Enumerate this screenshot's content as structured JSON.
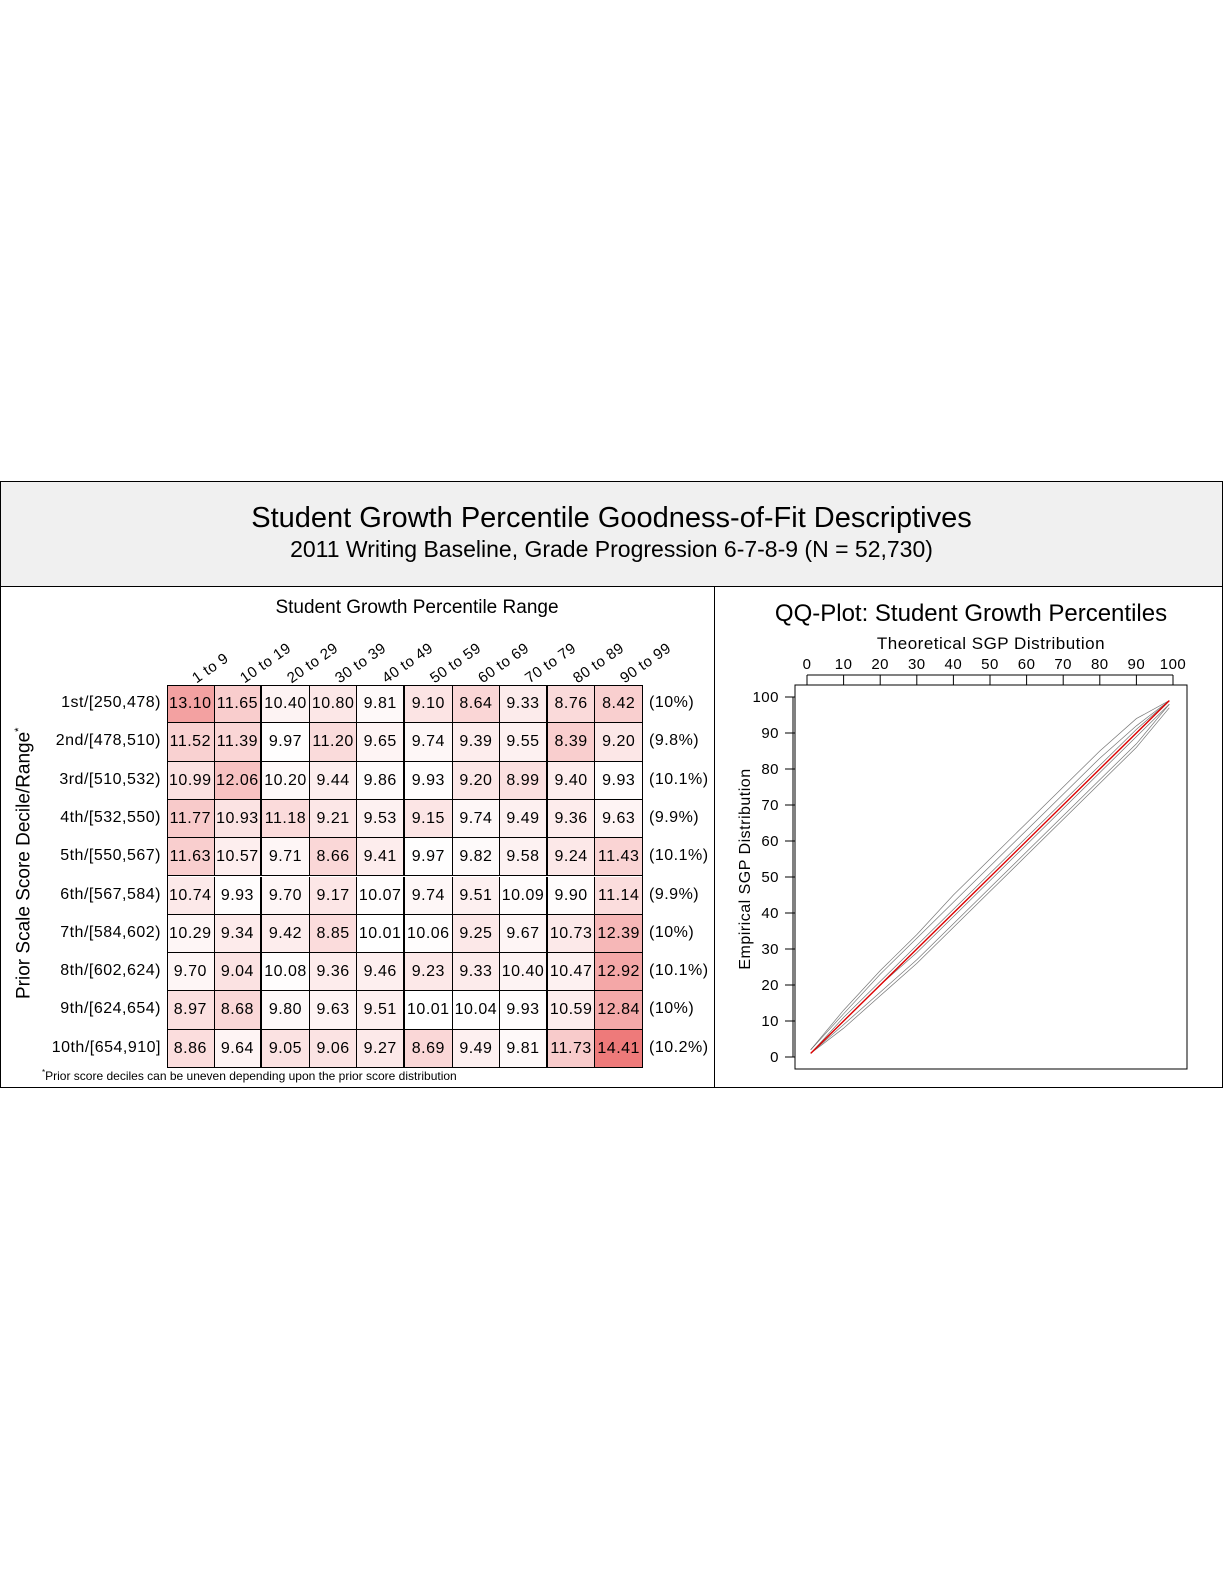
{
  "header": {
    "title": "Student Growth Percentile Goodness-of-Fit Descriptives",
    "subtitle": "2011 Writing Baseline, Grade Progression 6-7-8-9 (N = 52,730)"
  },
  "chart_data": [
    {
      "type": "heatmap",
      "title": "Student Growth Percentile Range",
      "ylabel": "Prior Scale Score Decile/Range",
      "ylabel_mark": "*",
      "columns": [
        "1 to 9",
        "10 to 19",
        "20 to 29",
        "30 to 39",
        "40 to 49",
        "50 to 59",
        "60 to 69",
        "70 to 79",
        "80 to 89",
        "90 to 99"
      ],
      "rows": [
        "1st/[250,478)",
        "2nd/[478,510)",
        "3rd/[510,532)",
        "4th/[532,550)",
        "5th/[550,567)",
        "6th/[567,584)",
        "7th/[584,602)",
        "8th/[602,624)",
        "9th/[624,654)",
        "10th/[654,910]"
      ],
      "values": [
        [
          "13.10",
          "11.65",
          "10.40",
          "10.80",
          "9.81",
          "9.10",
          "8.64",
          "9.33",
          "8.76",
          "8.42"
        ],
        [
          "11.52",
          "11.39",
          "9.97",
          "11.20",
          "9.65",
          "9.74",
          "9.39",
          "9.55",
          "8.39",
          "9.20"
        ],
        [
          "10.99",
          "12.06",
          "10.20",
          "9.44",
          "9.86",
          "9.93",
          "9.20",
          "8.99",
          "9.40",
          "9.93"
        ],
        [
          "11.77",
          "10.93",
          "11.18",
          "9.21",
          "9.53",
          "9.15",
          "9.74",
          "9.49",
          "9.36",
          "9.63"
        ],
        [
          "11.63",
          "10.57",
          "9.71",
          "8.66",
          "9.41",
          "9.97",
          "9.82",
          "9.58",
          "9.24",
          "11.43"
        ],
        [
          "10.74",
          "9.93",
          "9.70",
          "9.17",
          "10.07",
          "9.74",
          "9.51",
          "10.09",
          "9.90",
          "11.14"
        ],
        [
          "10.29",
          "9.34",
          "9.42",
          "8.85",
          "10.01",
          "10.06",
          "9.25",
          "9.67",
          "10.73",
          "12.39"
        ],
        [
          "9.70",
          "9.04",
          "10.08",
          "9.36",
          "9.46",
          "9.23",
          "9.33",
          "10.40",
          "10.47",
          "12.92"
        ],
        [
          "8.97",
          "8.68",
          "9.80",
          "9.63",
          "9.51",
          "10.01",
          "10.04",
          "9.93",
          "10.59",
          "12.84"
        ],
        [
          "8.86",
          "9.64",
          "9.05",
          "9.06",
          "9.27",
          "8.69",
          "9.49",
          "9.81",
          "11.73",
          "14.41"
        ]
      ],
      "row_percentages": [
        "(10%)",
        "(9.8%)",
        "(10.1%)",
        "(9.9%)",
        "(10.1%)",
        "(9.9%)",
        "(10%)",
        "(10.1%)",
        "(10%)",
        "(10.2%)"
      ],
      "color_scale": {
        "low": "#ffffff",
        "high": "#ee7777",
        "center": 10
      },
      "footnote_mark": "*",
      "footnote": "Prior score deciles can be uneven depending upon the prior score distribution"
    },
    {
      "type": "line",
      "title": "QQ-Plot: Student Growth Percentiles",
      "xlabel": "Theoretical SGP Distribution",
      "ylabel": "Empirical SGP Distribution",
      "xlim": [
        0,
        100
      ],
      "ylim": [
        0,
        100
      ],
      "xticks": [
        0,
        10,
        20,
        30,
        40,
        50,
        60,
        70,
        80,
        90,
        100
      ],
      "yticks": [
        0,
        10,
        20,
        30,
        40,
        50,
        60,
        70,
        80,
        90,
        100
      ],
      "series": [
        {
          "color": "#dd0000",
          "x": [
            1,
            99
          ],
          "y": [
            1,
            99
          ]
        },
        {
          "color": "#555555",
          "x": [
            1,
            10,
            20,
            30,
            40,
            50,
            60,
            70,
            80,
            90,
            99
          ],
          "y": [
            2,
            12,
            23,
            33,
            43,
            53,
            63,
            73,
            83,
            92,
            99
          ]
        },
        {
          "color": "#555555",
          "x": [
            1,
            10,
            20,
            30,
            40,
            50,
            60,
            70,
            80,
            90,
            99
          ],
          "y": [
            1,
            9,
            18,
            27,
            37,
            47,
            57,
            67,
            77,
            87,
            98
          ]
        },
        {
          "color": "#555555",
          "x": [
            1,
            10,
            20,
            30,
            40,
            50,
            60,
            70,
            80,
            90,
            99
          ],
          "y": [
            1,
            11,
            21,
            31,
            41,
            51,
            61,
            71,
            81,
            91,
            99
          ]
        },
        {
          "color": "#555555",
          "x": [
            1,
            10,
            20,
            30,
            40,
            50,
            60,
            70,
            80,
            90,
            99
          ],
          "y": [
            1,
            10,
            20,
            29,
            39,
            49,
            59,
            69,
            79,
            89,
            98
          ]
        },
        {
          "color": "#555555",
          "x": [
            1,
            10,
            20,
            30,
            40,
            50,
            60,
            70,
            80,
            90,
            99
          ],
          "y": [
            2,
            13,
            24,
            34,
            45,
            55,
            65,
            75,
            85,
            94,
            99
          ]
        },
        {
          "color": "#555555",
          "x": [
            1,
            10,
            20,
            30,
            40,
            50,
            60,
            70,
            80,
            90,
            99
          ],
          "y": [
            1,
            8,
            17,
            26,
            36,
            46,
            56,
            66,
            76,
            86,
            97
          ]
        }
      ]
    }
  ]
}
